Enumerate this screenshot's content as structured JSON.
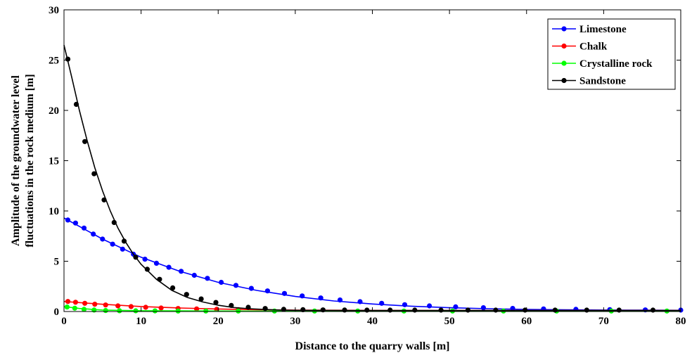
{
  "chart_data": {
    "type": "line",
    "xlabel": "Distance to the quarry walls [m]",
    "ylabel_lines": [
      "Amplitude of the groundwater level",
      "fluctuations in the rock medium [m]"
    ],
    "xlim": [
      0,
      80
    ],
    "ylim": [
      0,
      30
    ],
    "xticks": [
      "0",
      "10",
      "20",
      "30",
      "40",
      "50",
      "60",
      "70",
      "80"
    ],
    "yticks": [
      "0",
      "5",
      "10",
      "15",
      "20",
      "25",
      "30"
    ],
    "grid": false,
    "legend_position": "top-right",
    "series": [
      {
        "name": "Limestone",
        "color": "#0000ff",
        "line_x": [
          0,
          5,
          10,
          15,
          20,
          25,
          30,
          35,
          40,
          45,
          50,
          55,
          60,
          65,
          70,
          75,
          80
        ],
        "line_y": [
          9.3,
          7.2,
          5.4,
          4.0,
          2.9,
          2.1,
          1.5,
          1.05,
          0.75,
          0.53,
          0.38,
          0.28,
          0.21,
          0.17,
          0.15,
          0.13,
          0.12
        ],
        "x": [
          0.5,
          1.5,
          2.6,
          3.8,
          5.0,
          6.3,
          7.6,
          9.0,
          10.5,
          12.0,
          13.6,
          15.2,
          16.9,
          18.6,
          20.4,
          22.3,
          24.3,
          26.4,
          28.6,
          30.9,
          33.3,
          35.8,
          38.4,
          41.2,
          44.2,
          47.4,
          50.8,
          54.4,
          58.2,
          62.2,
          66.4,
          70.8,
          75.4,
          80.0
        ],
        "y": [
          9.1,
          8.8,
          8.3,
          7.7,
          7.2,
          6.7,
          6.2,
          5.7,
          5.2,
          4.8,
          4.4,
          4.0,
          3.6,
          3.3,
          2.9,
          2.6,
          2.3,
          2.05,
          1.8,
          1.55,
          1.35,
          1.15,
          0.98,
          0.82,
          0.68,
          0.56,
          0.46,
          0.38,
          0.31,
          0.26,
          0.22,
          0.19,
          0.16,
          0.14
        ]
      },
      {
        "name": "Chalk",
        "color": "#ff0000",
        "line_x": [
          0,
          5,
          10,
          15,
          20,
          25,
          30,
          40,
          50,
          60,
          70,
          80
        ],
        "line_y": [
          1.0,
          0.72,
          0.5,
          0.35,
          0.25,
          0.18,
          0.14,
          0.11,
          0.1,
          0.1,
          0.1,
          0.1
        ],
        "x": [
          0.5,
          1.5,
          2.7,
          4.0,
          5.4,
          7.0,
          8.7,
          10.6,
          12.6,
          14.8,
          17.2,
          19.8,
          22.6
        ],
        "y": [
          1.0,
          0.92,
          0.82,
          0.73,
          0.65,
          0.56,
          0.49,
          0.42,
          0.35,
          0.3,
          0.26,
          0.22,
          0.19
        ]
      },
      {
        "name": "Crystalline rock",
        "color": "#00ff00",
        "line_x": [
          0,
          2,
          5,
          10,
          20,
          30,
          40,
          50,
          60,
          70,
          80
        ],
        "line_y": [
          0.5,
          0.3,
          0.15,
          0.08,
          0.05,
          0.04,
          0.04,
          0.04,
          0.04,
          0.04,
          0.04
        ],
        "x": [
          0.4,
          1.4,
          2.6,
          3.9,
          5.4,
          7.2,
          9.3,
          11.8,
          14.8,
          18.4,
          22.6,
          27.3,
          32.5,
          38.1,
          44.1,
          50.4,
          57.0,
          63.9,
          71.0,
          78.2
        ],
        "y": [
          0.45,
          0.33,
          0.22,
          0.15,
          0.1,
          0.08,
          0.07,
          0.06,
          0.05,
          0.05,
          0.05,
          0.05,
          0.05,
          0.05,
          0.05,
          0.05,
          0.05,
          0.05,
          0.05,
          0.05
        ]
      },
      {
        "name": "Sandstone",
        "color": "#000000",
        "line_x": [
          0,
          1,
          2,
          3,
          4,
          5,
          6,
          7,
          8,
          9,
          10,
          12,
          14,
          16,
          18,
          20,
          22,
          24,
          26,
          28,
          30,
          40,
          50,
          60,
          70,
          80
        ],
        "line_y": [
          26.5,
          23.3,
          20.0,
          17.0,
          14.3,
          12.0,
          10.0,
          8.3,
          6.9,
          5.7,
          4.7,
          3.2,
          2.1,
          1.4,
          0.95,
          0.62,
          0.4,
          0.28,
          0.2,
          0.15,
          0.12,
          0.1,
          0.1,
          0.1,
          0.1,
          0.1
        ],
        "x": [
          0.5,
          1.6,
          2.7,
          3.9,
          5.2,
          6.5,
          7.8,
          9.3,
          10.8,
          12.4,
          14.1,
          15.9,
          17.8,
          19.7,
          21.7,
          23.9,
          26.1,
          28.5,
          31.0,
          33.6,
          36.4,
          39.3,
          42.3,
          45.5,
          48.9,
          52.4,
          56.0,
          59.8,
          63.7,
          67.8,
          72.0,
          76.4
        ],
        "y": [
          25.1,
          20.6,
          16.9,
          13.7,
          11.1,
          8.85,
          7.0,
          5.4,
          4.2,
          3.2,
          2.35,
          1.7,
          1.25,
          0.9,
          0.6,
          0.42,
          0.3,
          0.22,
          0.18,
          0.16,
          0.15,
          0.14,
          0.14,
          0.14,
          0.14,
          0.14,
          0.14,
          0.14,
          0.14,
          0.14,
          0.14,
          0.14
        ]
      }
    ]
  }
}
